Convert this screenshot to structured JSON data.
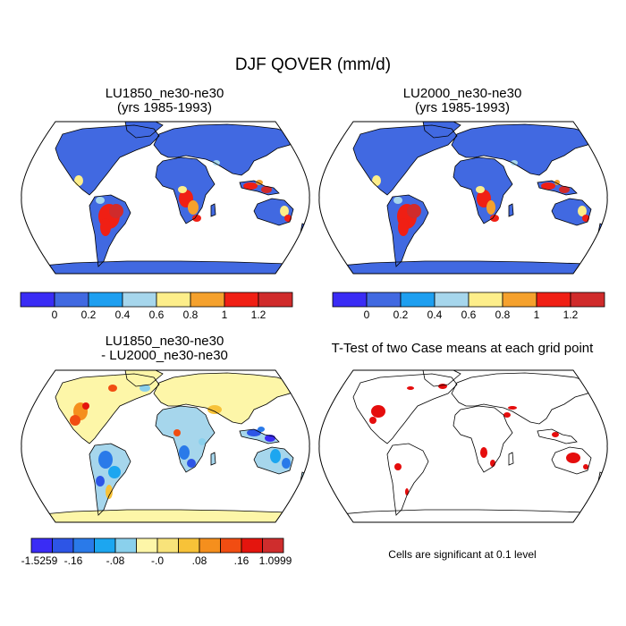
{
  "main_title": "DJF QOVER (mm/d)",
  "panels": [
    {
      "id": "p1",
      "title_line1": "LU1850_ne30-ne30",
      "title_line2": "(yrs 1985-1993)"
    },
    {
      "id": "p2",
      "title_line1": "LU2000_ne30-ne30",
      "title_line2": "(yrs 1985-1993)"
    },
    {
      "id": "p3",
      "title_line1": "LU1850_ne30-ne30",
      "title_line2": "- LU2000_ne30-ne30"
    },
    {
      "id": "p4",
      "title_line1": "T-Test of two Case means at each grid point",
      "title_line2": ""
    }
  ],
  "colorbars": {
    "absolute": {
      "colors": [
        "#3a2cf5",
        "#4169e1",
        "#1e9ff0",
        "#a6d6ec",
        "#fdee8a",
        "#f5a12d",
        "#f01f14",
        "#d02b2b"
      ],
      "tick_labels": [
        "0",
        "0.2",
        "0.4",
        "0.6",
        "0.8",
        "1",
        "1.2"
      ]
    },
    "difference": {
      "colors": [
        "#3a2cf5",
        "#2d55e6",
        "#2a7ae9",
        "#1ca6f0",
        "#8ad0ec",
        "#fdf6a8",
        "#f8e37a",
        "#f7c238",
        "#f58f1d",
        "#f14d12",
        "#e4150e",
        "#cf2d2d"
      ],
      "tick_labels": [
        "-1.5259",
        "-.16",
        "-.08",
        "-.0",
        ".08",
        ".16",
        "1.0999"
      ]
    }
  },
  "map_colors": {
    "ocean": "#ffffff",
    "coast": "#000000",
    "land_base_abs": "#4169e1",
    "land_base_diff": "#a6d6ec",
    "significant": "#e50d0d"
  },
  "significance_note": "Cells are significant at 0.1 level"
}
